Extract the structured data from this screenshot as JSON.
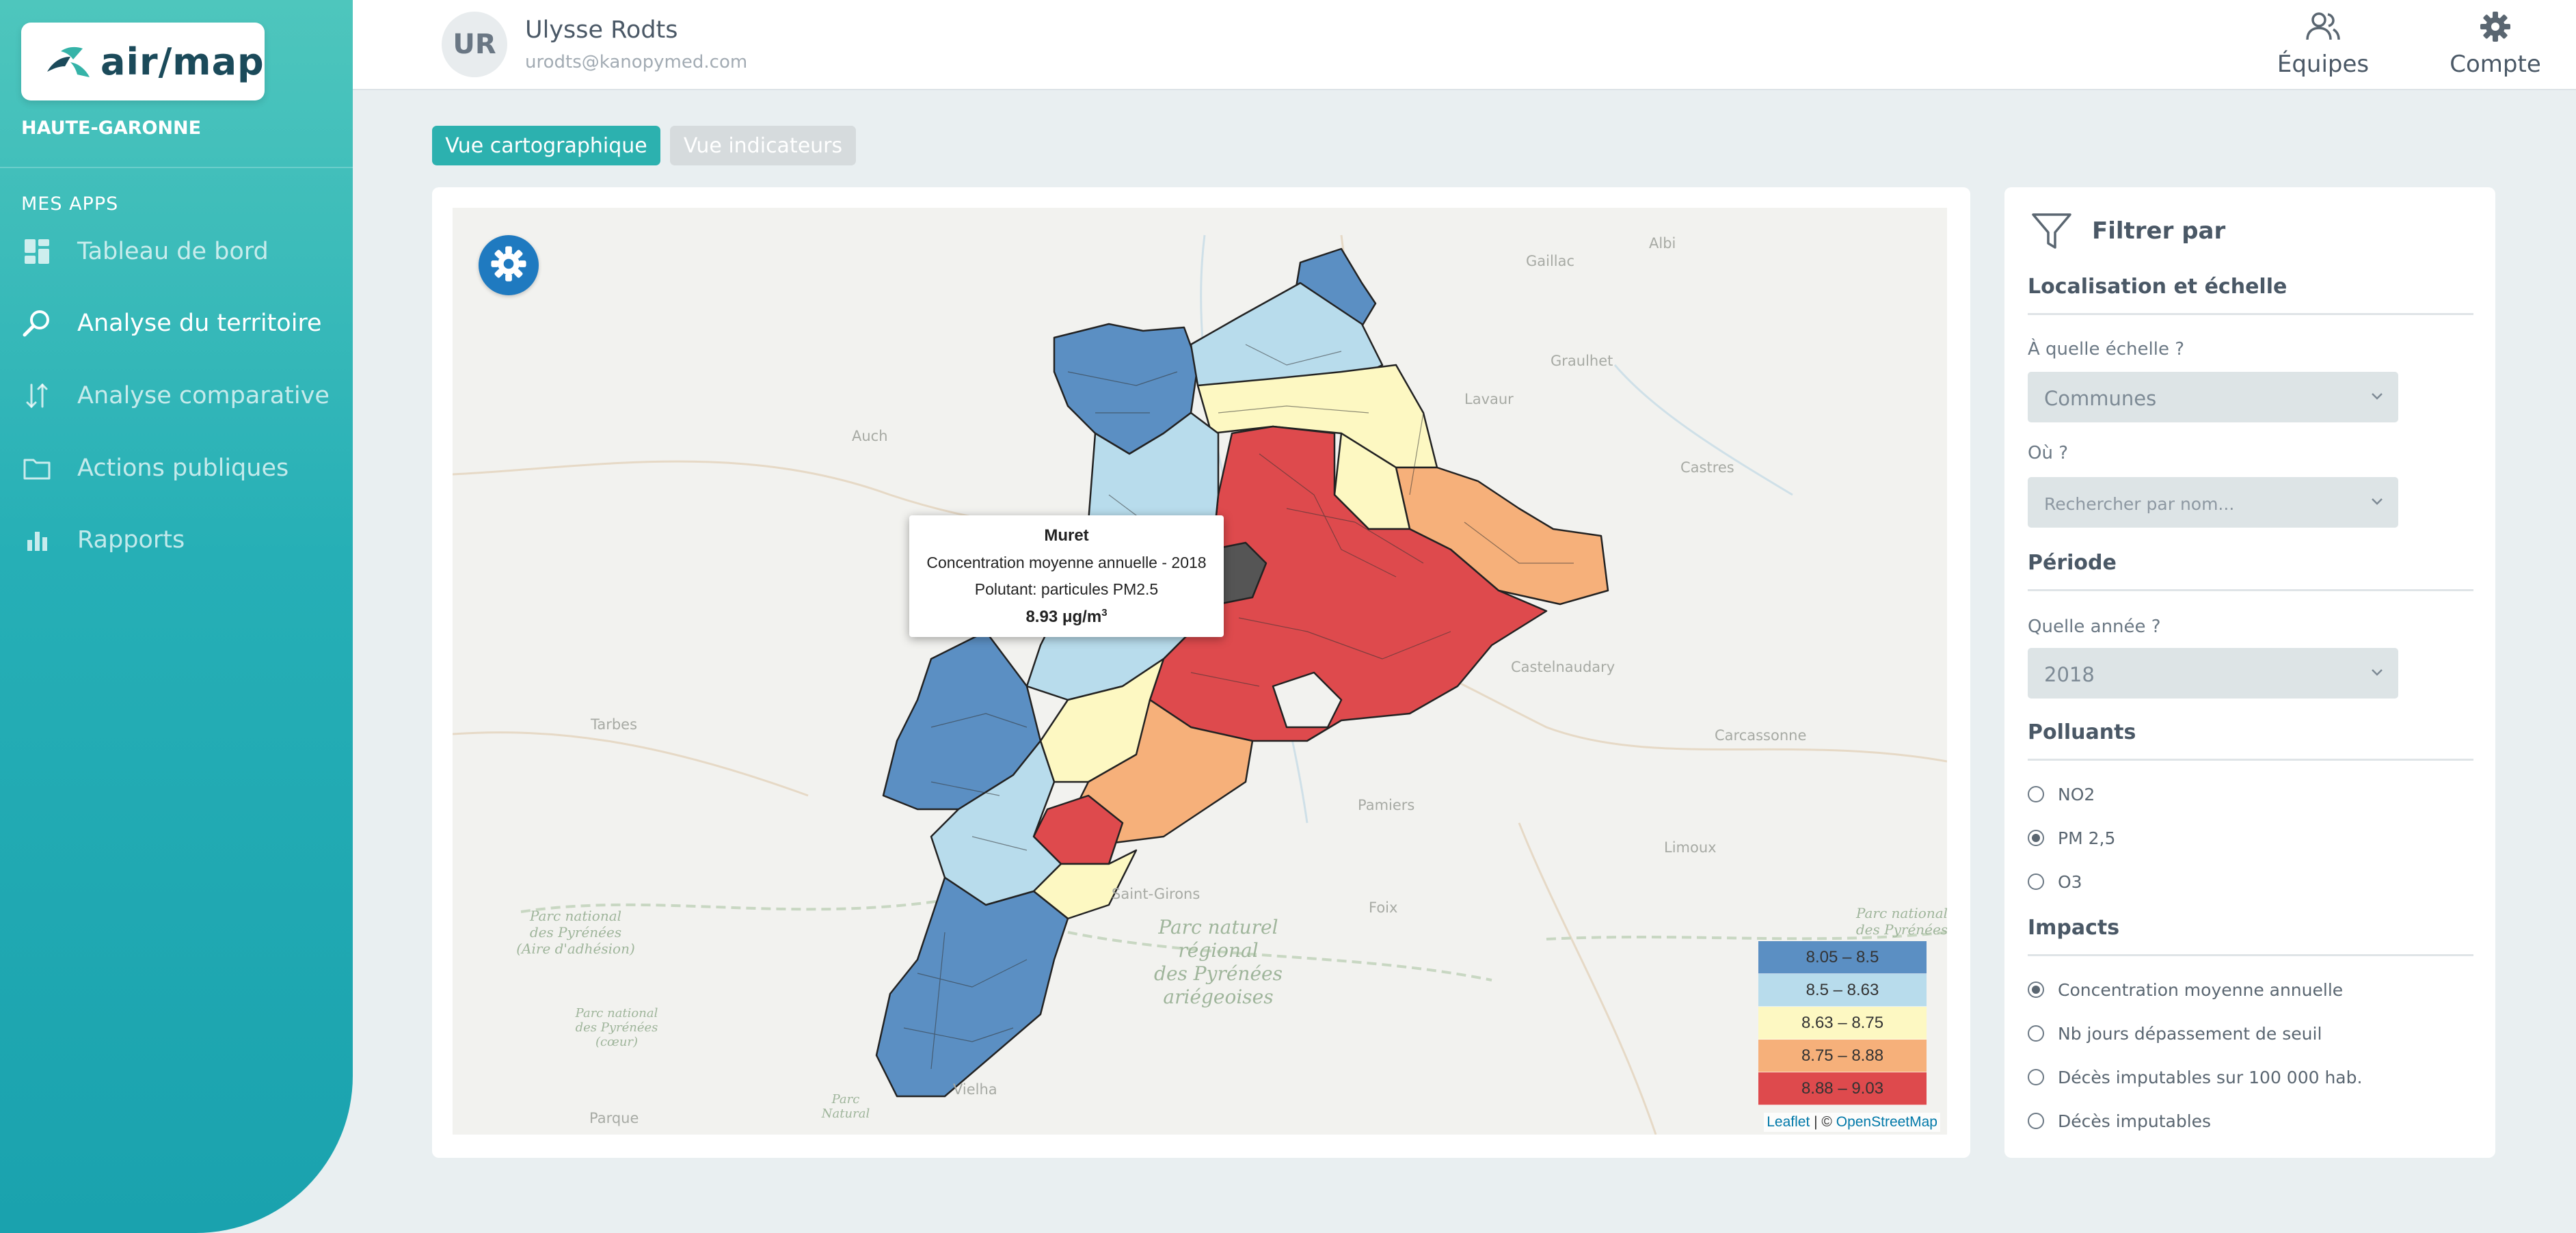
{
  "app": {
    "logo_text": "air/map",
    "region": "HAUTE-GARONNE",
    "apps_title": "MES APPS"
  },
  "nav": [
    {
      "label": "Tableau de bord",
      "icon": "dashboard-icon"
    },
    {
      "label": "Analyse du territoire",
      "icon": "magnifier-icon",
      "active": true
    },
    {
      "label": "Analyse comparative",
      "icon": "compare-arrows-icon"
    },
    {
      "label": "Actions publiques",
      "icon": "folder-icon"
    },
    {
      "label": "Rapports",
      "icon": "bar-chart-icon"
    }
  ],
  "user": {
    "initials": "UR",
    "name": "Ulysse Rodts",
    "email": "urodts@kanopymed.com"
  },
  "header": {
    "teams_label": "Équipes",
    "account_label": "Compte"
  },
  "tabs": {
    "map_view": "Vue cartographique",
    "indicators_view": "Vue indicateurs"
  },
  "map": {
    "places": {
      "gaillac": "Gaillac",
      "albi": "Albi",
      "graulhet": "Graulhet",
      "lavaur": "Lavaur",
      "auch": "Auch",
      "castres": "Castres",
      "castelnaudary": "Castelnaudary",
      "tarbes": "Tarbes",
      "carcassonne": "Carcassonne",
      "pamiers": "Pamiers",
      "limoux": "Limoux",
      "saint_girons": "Saint-Girons",
      "foix": "Foix",
      "vielha": "Vielha",
      "parque": "Parque",
      "parc_pyr": "Parc national\ndes Pyrénées\n(Aire d'adhésion)",
      "parc_ariege": "Parc naturel\nrégional\ndes Pyrénées\nariégeoises",
      "parc_coeur": "Parc national\ndes Pyrénées\n(cœur)",
      "parc_right": "Parc national\ndes Pyrénées",
      "parc_nat": "Parc\nNatural"
    },
    "tooltip": {
      "title": "Muret",
      "line1": "Concentration moyenne annuelle - 2018",
      "line2": "Polutant: particules PM2.5",
      "value": "8.93 μg/m",
      "value_sup": "3"
    },
    "legend": [
      {
        "label": "8.05 – 8.5",
        "color": "#5b8fc3"
      },
      {
        "label": "8.5 – 8.63",
        "color": "#b8dcec"
      },
      {
        "label": "8.63 – 8.75",
        "color": "#fdf8c2"
      },
      {
        "label": "8.75 – 8.88",
        "color": "#f6b07a"
      },
      {
        "label": "8.88 – 9.03",
        "color": "#de4a4d"
      }
    ],
    "attribution": {
      "leaflet": "Leaflet",
      "sep": " | © ",
      "osm": "OpenStreetMap"
    }
  },
  "filters": {
    "title": "Filtrer par",
    "location_section": "Localisation et échelle",
    "scale_label": "À quelle échelle ?",
    "scale_value": "Communes",
    "where_label": "Où ?",
    "where_placeholder": "Rechercher par nom...",
    "period_section": "Période",
    "year_label": "Quelle année ?",
    "year_value": "2018",
    "pollutants_section": "Polluants",
    "pollutants": [
      {
        "label": "NO2",
        "checked": false
      },
      {
        "label": "PM 2,5",
        "checked": true
      },
      {
        "label": "O3",
        "checked": false
      }
    ],
    "impacts_section": "Impacts",
    "impacts": [
      {
        "label": "Concentration moyenne annuelle",
        "checked": true
      },
      {
        "label": "Nb jours dépassement de seuil",
        "checked": false
      },
      {
        "label": "Décès imputables sur 100 000 hab.",
        "checked": false
      },
      {
        "label": "Décès imputables",
        "checked": false
      }
    ]
  }
}
